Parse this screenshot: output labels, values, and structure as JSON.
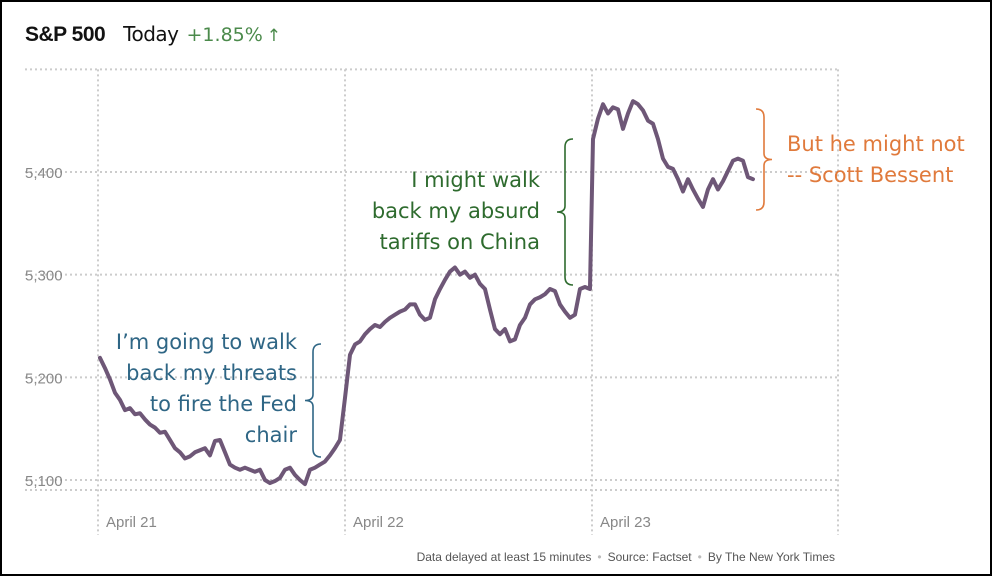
{
  "header": {
    "title": "S&P 500",
    "period": "Today",
    "change": "+1.85%",
    "change_icon": "arrow-up-icon"
  },
  "colors": {
    "line": "#6e5777",
    "grid": "#cccccc",
    "axis_text": "#888888",
    "up": "#4b8a4b",
    "blue": "#2f6685",
    "green": "#2e6b2e",
    "orange": "#e07a3c"
  },
  "chart_data": {
    "type": "line",
    "title": "S&P 500 Today +1.85%",
    "xlabel": "",
    "ylabel": "",
    "ylim": [
      5090,
      5500
    ],
    "xlim": [
      0,
      3
    ],
    "y_ticks": [
      {
        "value": 5100,
        "label": "5,100"
      },
      {
        "value": 5200,
        "label": "5,200"
      },
      {
        "value": 5300,
        "label": "5,300"
      },
      {
        "value": 5400,
        "label": "5,400"
      }
    ],
    "x_ticks": [
      {
        "value": 0,
        "label": "April 21"
      },
      {
        "value": 1,
        "label": "April 22"
      },
      {
        "value": 2,
        "label": "April 23"
      }
    ],
    "grid": true,
    "x_unit": "trading days since April 21 open",
    "point_step": 0.02024,
    "series": [
      {
        "name": "April 21",
        "start": 0.008,
        "values": [
          5219,
          5209,
          5198,
          5185,
          5178,
          5168,
          5170,
          5164,
          5165,
          5159,
          5154,
          5151,
          5146,
          5147,
          5139,
          5131,
          5127,
          5121,
          5123,
          5127,
          5129,
          5131,
          5124,
          5138,
          5139,
          5127,
          5115,
          5112,
          5110,
          5112,
          5110,
          5108,
          5110,
          5100,
          5097,
          5099,
          5102,
          5110,
          5112,
          5105,
          5100,
          5096,
          5110,
          5112,
          5115,
          5118,
          5124,
          5131,
          5139
        ]
      },
      {
        "name": "April 22",
        "start": 1.0,
        "values": [
          5180,
          5222,
          5232,
          5235,
          5242,
          5247,
          5251,
          5249,
          5254,
          5258,
          5261,
          5264,
          5266,
          5271,
          5271,
          5261,
          5256,
          5258,
          5276,
          5286,
          5295,
          5303,
          5307,
          5300,
          5303,
          5297,
          5300,
          5291,
          5286,
          5266,
          5247,
          5242,
          5247,
          5235,
          5237,
          5251,
          5258,
          5271,
          5276,
          5278,
          5281,
          5286,
          5284,
          5271,
          5264,
          5258,
          5261,
          5286,
          5288,
          5286
        ]
      },
      {
        "name": "April 23",
        "start": 2.004,
        "values": [
          5432,
          5452,
          5466,
          5457,
          5463,
          5461,
          5442,
          5457,
          5469,
          5466,
          5460,
          5450,
          5447,
          5432,
          5413,
          5405,
          5403,
          5393,
          5381,
          5393,
          5383,
          5374,
          5366,
          5383,
          5393,
          5383,
          5391,
          5401,
          5411,
          5413,
          5411,
          5395,
          5393
        ]
      }
    ],
    "annotations": [
      {
        "lines": [
          "I’m going to walk",
          "back my threats",
          "to fire the Fed",
          "chair"
        ],
        "color": "blue",
        "range": [
          5100,
          5230
        ]
      },
      {
        "lines": [
          "I might walk",
          "back my absurd",
          "tariffs on China"
        ],
        "color": "green",
        "range": [
          5290,
          5430
        ]
      },
      {
        "lines": [
          "But he might not",
          "-- Scott Bessent"
        ],
        "color": "orange",
        "range": [
          5365,
          5470
        ]
      }
    ]
  },
  "footer": {
    "delay": "Data delayed at least 15 minutes",
    "source": "Source: Factset",
    "byline": "By The New York Times"
  }
}
